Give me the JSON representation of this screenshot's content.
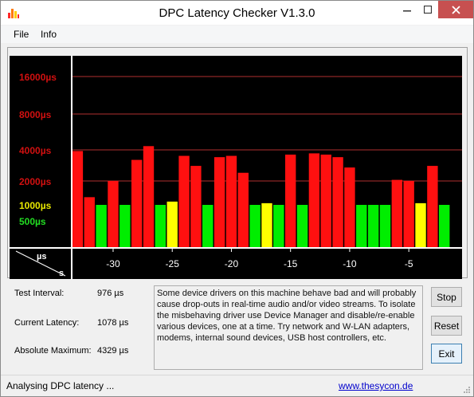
{
  "window": {
    "title": "DPC Latency Checker V1.3.0"
  },
  "menu": [
    "File",
    "Info"
  ],
  "chart_data": {
    "type": "bar",
    "y_labels": [
      {
        "text": "16000µs",
        "value": 16000,
        "color": "#d11010"
      },
      {
        "text": "8000µs",
        "value": 8000,
        "color": "#d11010"
      },
      {
        "text": "4000µs",
        "value": 4000,
        "color": "#d11010"
      },
      {
        "text": "2000µs",
        "value": 2000,
        "color": "#d11010"
      },
      {
        "text": "1000µs",
        "value": 1000,
        "color": "#e8e800"
      },
      {
        "text": "500µs",
        "value": 500,
        "color": "#22dd22"
      }
    ],
    "x_ticks": [
      "-30",
      "-25",
      "-20",
      "-15",
      "-10",
      "-5"
    ],
    "x_tick_values": [
      -30,
      -25,
      -20,
      -15,
      -10,
      -5
    ],
    "x_range": [
      -34,
      0
    ],
    "corner_top": "µs",
    "corner_bottom": "s",
    "gridlines_at": [
      16000,
      8000,
      4000,
      2000
    ],
    "bars": [
      {
        "x": -33,
        "value": 3900
      },
      {
        "x": -32,
        "value": 1250
      },
      {
        "x": -31,
        "value": 1000
      },
      {
        "x": -30,
        "value": 2000
      },
      {
        "x": -29,
        "value": 1000
      },
      {
        "x": -28,
        "value": 3200
      },
      {
        "x": -27,
        "value": 4300
      },
      {
        "x": -26,
        "value": 1000
      },
      {
        "x": -25,
        "value": 1100
      },
      {
        "x": -24,
        "value": 3500
      },
      {
        "x": -23,
        "value": 2800
      },
      {
        "x": -22,
        "value": 1000
      },
      {
        "x": -21,
        "value": 3400
      },
      {
        "x": -20,
        "value": 3500
      },
      {
        "x": -19,
        "value": 2400
      },
      {
        "x": -18,
        "value": 1000
      },
      {
        "x": -17,
        "value": 1050
      },
      {
        "x": -16,
        "value": 1000
      },
      {
        "x": -15,
        "value": 3600
      },
      {
        "x": -14,
        "value": 1000
      },
      {
        "x": -13,
        "value": 3700
      },
      {
        "x": -12,
        "value": 3600
      },
      {
        "x": -11,
        "value": 3400
      },
      {
        "x": -10,
        "value": 2700
      },
      {
        "x": -9,
        "value": 1000
      },
      {
        "x": -8,
        "value": 1000
      },
      {
        "x": -7,
        "value": 1000
      },
      {
        "x": -6,
        "value": 2050
      },
      {
        "x": -5,
        "value": 2000
      },
      {
        "x": -4,
        "value": 1050
      },
      {
        "x": -3,
        "value": 2800
      },
      {
        "x": -2,
        "value": 1000
      }
    ],
    "colors": {
      "background": "#000000",
      "grid": "#b03030",
      "red": "#ff1010",
      "yellow": "#ffff00",
      "green": "#00ee00",
      "axis": "#ffffff"
    }
  },
  "stats": {
    "test_interval_label": "Test Interval:",
    "test_interval_value": "976 µs",
    "current_latency_label": "Current Latency:",
    "current_latency_value": "1078 µs",
    "absolute_max_label": "Absolute Maximum:",
    "absolute_max_value": "4329 µs"
  },
  "description": "Some device drivers on this machine behave bad and will probably cause drop-outs in real-time audio and/or video streams. To isolate the misbehaving driver use Device Manager and disable/re-enable various devices, one at a time. Try network and W-LAN adapters, modems, internal sound devices, USB host controllers, etc.",
  "buttons": {
    "stop": "Stop",
    "reset": "Reset",
    "exit": "Exit"
  },
  "status": {
    "text": "Analysing DPC latency ...",
    "link": "www.thesycon.de"
  },
  "icons": {
    "app": "bar-chart-icon",
    "minimize": "minimize-icon",
    "maximize": "maximize-icon",
    "close": "close-icon"
  }
}
